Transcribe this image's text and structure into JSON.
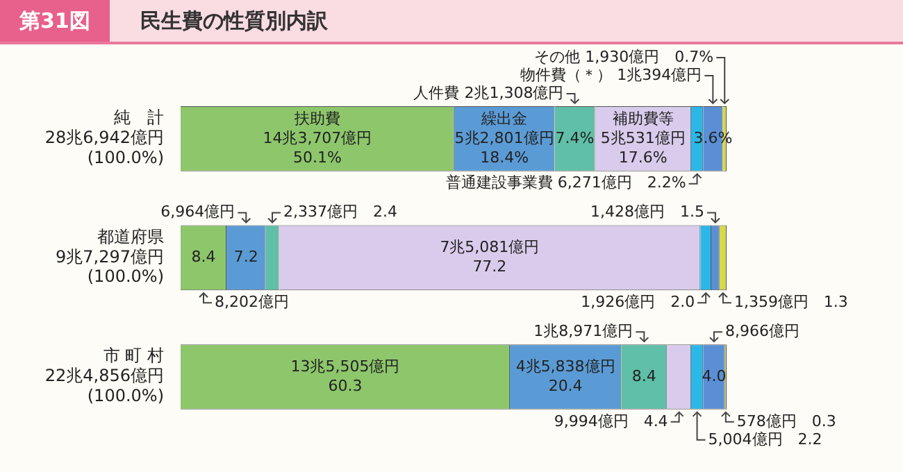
{
  "chart_data": {
    "type": "bar",
    "orientation": "horizontal",
    "stacked": true,
    "title": "第31図　民生費の性質別内訳",
    "categories": [
      "純　計\n28兆6,942億円\n(100.0%)",
      "都道府県\n9兆7,297億円\n(100.0%)",
      "市 町 村\n22兆4,856億円\n(100.0%)"
    ],
    "series": [
      {
        "color": "#8dc66b",
        "values": [
          50.1,
          8.4,
          60.3
        ],
        "value_labels": [
          "扶助費\n14兆3,707億円\n50.1%",
          "8.4",
          "13兆5,505億円\n60.3"
        ]
      },
      {
        "color": "#5b9bd5",
        "values": [
          18.4,
          7.2,
          20.4
        ],
        "value_labels": [
          "繰出金\n5兆2,801億円\n18.4%",
          "7.2",
          "4兆5,838億円\n20.4"
        ]
      },
      {
        "color": "#5fbfa8",
        "values": [
          7.4,
          2.4,
          8.4
        ],
        "value_labels": [
          "7.4%",
          null,
          "8.4"
        ]
      },
      {
        "color": "#d9cbeb",
        "values": [
          17.6,
          77.2,
          4.4
        ],
        "value_labels": [
          "補助費等\n5兆531億円\n17.6%",
          "7兆5,081億円\n77.2",
          null
        ]
      },
      {
        "color": "#2bb8e8",
        "values": [
          2.2,
          2.0,
          2.2
        ],
        "value_labels": [
          null,
          null,
          null
        ]
      },
      {
        "color": "#5a8fd6",
        "values": [
          3.6,
          1.5,
          4.0
        ],
        "value_labels": [
          "3.6%",
          null,
          "4.0"
        ]
      },
      {
        "color": "#d8d84a",
        "values": [
          0.7,
          1.3,
          0.3
        ],
        "value_labels": [
          null,
          null,
          null
        ]
      }
    ],
    "annotations": [
      "人件費 2兆1,308億円",
      "物件費（＊） 1兆394億円",
      "その他 1,930億円　0.7%",
      "普通建設事業費 6,271億円　2.2%",
      "6,964億円",
      "2,337億円　2.4",
      "1,428億円　1.5",
      "8,202億円",
      "1,926億円　2.0",
      "1,359億円　1.3",
      "1兆8,971億円",
      "8,966億円",
      "9,994億円　4.4",
      "578億円　0.3",
      "5,004億円　2.2"
    ],
    "legend": false
  }
}
